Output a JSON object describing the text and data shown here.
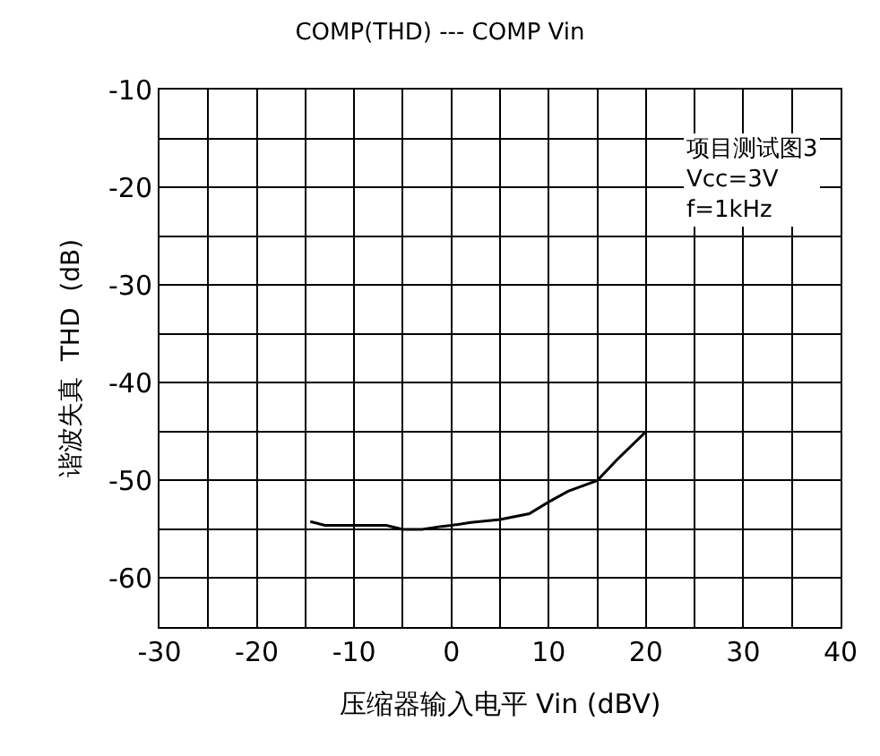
{
  "chart_data": {
    "type": "line",
    "title": "COMP(THD) --- COMP Vin",
    "xlabel": "压缩器输入电平 Vin (dBV)",
    "ylabel": "谐波失真  THD  (dB)",
    "annotations": [
      "项目测试图3",
      "Vcc=3V",
      "f=1kHz"
    ],
    "series": [
      {
        "color": "#000000",
        "x": [
          -14.5,
          -13,
          -10,
          -6.7,
          -5,
          -3,
          -1,
          0,
          2,
          5,
          8,
          10,
          12,
          15,
          17,
          20
        ],
        "values": [
          -54.2,
          -54.6,
          -54.6,
          -54.6,
          -55,
          -55,
          -54.7,
          -54.6,
          -54.3,
          -54,
          -53.4,
          -52.2,
          -51.1,
          -50,
          -47.9,
          -45
        ]
      }
    ],
    "xlim": [
      -30,
      40
    ],
    "ylim": [
      -65,
      -10
    ],
    "xticks": [
      -30,
      {
        "value": -25,
        "label": null
      },
      -20,
      {
        "value": -15,
        "label": null
      },
      -10,
      {
        "value": -5,
        "label": null
      },
      0,
      {
        "value": 5,
        "label": null
      },
      10,
      {
        "value": 15,
        "label": null
      },
      20,
      {
        "value": 25,
        "label": null
      },
      30,
      {
        "value": 35,
        "label": null
      },
      40
    ],
    "yticks": [
      {
        "value": -65,
        "label": null
      },
      -60,
      {
        "value": -55,
        "label": null
      },
      -50,
      {
        "value": -45,
        "label": null
      },
      -40,
      {
        "value": -35,
        "label": null
      },
      -30,
      {
        "value": -25,
        "label": null
      },
      -20,
      {
        "value": -15,
        "label": null
      },
      -10
    ],
    "grid": true,
    "marker": "none",
    "line_style": "solid"
  }
}
